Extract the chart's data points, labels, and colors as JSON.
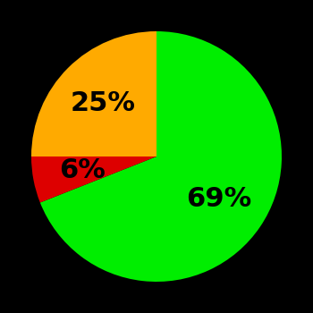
{
  "slices": [
    69,
    6,
    25
  ],
  "colors": [
    "#00ee00",
    "#dd0000",
    "#ffaa00"
  ],
  "labels": [
    "69%",
    "6%",
    "25%"
  ],
  "label_fontsize": 22,
  "label_color": "#000000",
  "background_color": "#000000",
  "startangle": 90,
  "figsize": [
    3.5,
    3.5
  ],
  "dpi": 100
}
